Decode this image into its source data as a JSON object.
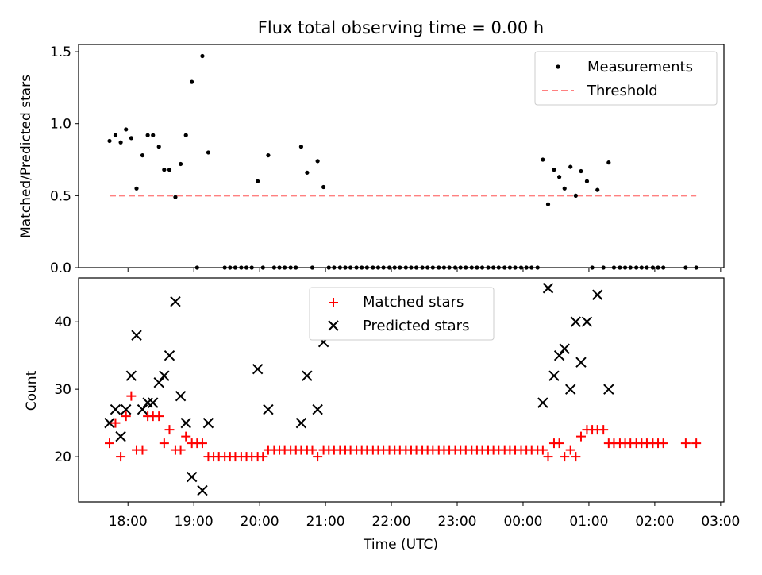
{
  "chart_data": [
    {
      "type": "scatter",
      "title": "Flux total observing time = 0.00 h",
      "xlabel": "",
      "ylabel": "Matched/Predicted stars",
      "xlim": [
        17.25,
        27.05
      ],
      "ylim": [
        0,
        1.55
      ],
      "yticks": [
        0.0,
        0.5,
        1.0,
        1.5
      ],
      "ytick_labels": [
        "0.0",
        "0.5",
        "1.0",
        "1.5"
      ],
      "legend_position": "upper right",
      "series": [
        {
          "name": "Measurements",
          "color": "#000000",
          "marker": "dot",
          "x": [
            17.72,
            17.81,
            17.89,
            17.97,
            18.05,
            18.13,
            18.22,
            18.3,
            18.38,
            18.47,
            18.55,
            18.63,
            18.72,
            18.8,
            18.88,
            18.97,
            19.05,
            19.13,
            19.22,
            19.47,
            19.55,
            19.63,
            19.72,
            19.8,
            19.88,
            19.97,
            20.05,
            20.13,
            20.22,
            20.3,
            20.38,
            20.47,
            20.55,
            20.63,
            20.72,
            20.8,
            20.88,
            20.97,
            21.05,
            21.13,
            21.22,
            21.3,
            21.38,
            21.47,
            21.55,
            21.63,
            21.72,
            21.8,
            21.88,
            21.97,
            22.05,
            22.13,
            22.22,
            22.3,
            22.38,
            22.47,
            22.55,
            22.63,
            22.72,
            22.8,
            22.88,
            22.97,
            23.05,
            23.13,
            23.22,
            23.3,
            23.38,
            23.47,
            23.55,
            23.63,
            23.72,
            23.8,
            23.88,
            23.97,
            24.05,
            24.13,
            24.22,
            24.3,
            24.38,
            24.47,
            24.55,
            24.63,
            24.72,
            24.8,
            24.88,
            24.97,
            25.05,
            25.13,
            25.22,
            25.3,
            25.38,
            25.47,
            25.55,
            25.63,
            25.72,
            25.8,
            25.88,
            25.97,
            26.05,
            26.13,
            26.47,
            26.63
          ],
          "y": [
            0.88,
            0.92,
            0.87,
            0.96,
            0.9,
            0.55,
            0.78,
            0.92,
            0.92,
            0.84,
            0.68,
            0.68,
            0.49,
            0.72,
            0.92,
            1.29,
            0.0,
            1.47,
            0.8,
            0.0,
            0.0,
            0.0,
            0.0,
            0.0,
            0.0,
            0.6,
            0.0,
            0.78,
            0.0,
            0.0,
            0.0,
            0.0,
            0.0,
            0.84,
            0.66,
            0.0,
            0.74,
            0.56,
            0.0,
            0.0,
            0.0,
            0.0,
            0.0,
            0.0,
            0.0,
            0.0,
            0.0,
            0.0,
            0.0,
            0.0,
            0.0,
            0.0,
            0.0,
            0.0,
            0.0,
            0.0,
            0.0,
            0.0,
            0.0,
            0.0,
            0.0,
            0.0,
            0.0,
            0.0,
            0.0,
            0.0,
            0.0,
            0.0,
            0.0,
            0.0,
            0.0,
            0.0,
            0.0,
            0.0,
            0.0,
            0.0,
            0.0,
            0.75,
            0.44,
            0.68,
            0.63,
            0.55,
            0.7,
            0.5,
            0.67,
            0.6,
            0.0,
            0.54,
            0.0,
            0.73,
            0.0,
            0.0,
            0.0,
            0.0,
            0.0,
            0.0,
            0.0,
            0.0,
            0.0,
            0.0,
            0.0,
            0.0
          ]
        },
        {
          "name": "Threshold",
          "color": "#ff8080",
          "style": "dashed",
          "x": [
            17.72,
            26.63
          ],
          "y": [
            0.5,
            0.5
          ]
        }
      ]
    },
    {
      "type": "scatter",
      "title": "",
      "xlabel": "Time (UTC)",
      "ylabel": "Count",
      "xlim": [
        17.25,
        27.05
      ],
      "ylim": [
        13.3,
        46.5
      ],
      "xticks": [
        18,
        19,
        20,
        21,
        22,
        23,
        24,
        25,
        26,
        27
      ],
      "xtick_labels": [
        "18:00",
        "19:00",
        "20:00",
        "21:00",
        "22:00",
        "23:00",
        "00:00",
        "01:00",
        "02:00",
        "03:00"
      ],
      "yticks": [
        20,
        30,
        40
      ],
      "ytick_labels": [
        "20",
        "30",
        "40"
      ],
      "legend_position": "upper center",
      "series": [
        {
          "name": "Matched stars",
          "color": "#ff0000",
          "marker": "plus",
          "x": [
            17.72,
            17.81,
            17.89,
            17.97,
            18.05,
            18.13,
            18.22,
            18.3,
            18.38,
            18.47,
            18.55,
            18.63,
            18.72,
            18.8,
            18.88,
            18.97,
            19.05,
            19.13,
            19.22,
            19.3,
            19.38,
            19.47,
            19.55,
            19.63,
            19.72,
            19.8,
            19.88,
            19.97,
            20.05,
            20.13,
            20.22,
            20.3,
            20.38,
            20.47,
            20.55,
            20.63,
            20.72,
            20.8,
            20.88,
            20.97,
            21.05,
            21.13,
            21.22,
            21.3,
            21.38,
            21.47,
            21.55,
            21.63,
            21.72,
            21.8,
            21.88,
            21.97,
            22.05,
            22.13,
            22.22,
            22.3,
            22.38,
            22.47,
            22.55,
            22.63,
            22.72,
            22.8,
            22.88,
            22.97,
            23.05,
            23.13,
            23.22,
            23.3,
            23.38,
            23.47,
            23.55,
            23.63,
            23.72,
            23.8,
            23.88,
            23.97,
            24.05,
            24.13,
            24.22,
            24.3,
            24.38,
            24.47,
            24.55,
            24.63,
            24.72,
            24.8,
            24.88,
            24.97,
            25.05,
            25.13,
            25.22,
            25.3,
            25.38,
            25.47,
            25.55,
            25.63,
            25.72,
            25.8,
            25.88,
            25.97,
            26.05,
            26.13,
            26.47,
            26.63
          ],
          "y": [
            22,
            25,
            20,
            26,
            29,
            21,
            21,
            26,
            26,
            26,
            22,
            24,
            21,
            21,
            23,
            22,
            22,
            22,
            20,
            20,
            20,
            20,
            20,
            20,
            20,
            20,
            20,
            20,
            20,
            21,
            21,
            21,
            21,
            21,
            21,
            21,
            21,
            21,
            20,
            21,
            21,
            21,
            21,
            21,
            21,
            21,
            21,
            21,
            21,
            21,
            21,
            21,
            21,
            21,
            21,
            21,
            21,
            21,
            21,
            21,
            21,
            21,
            21,
            21,
            21,
            21,
            21,
            21,
            21,
            21,
            21,
            21,
            21,
            21,
            21,
            21,
            21,
            21,
            21,
            21,
            20,
            22,
            22,
            20,
            21,
            20,
            23,
            24,
            24,
            24,
            24,
            22,
            22,
            22,
            22,
            22,
            22,
            22,
            22,
            22,
            22,
            22,
            22,
            22
          ]
        },
        {
          "name": "Predicted stars",
          "color": "#000000",
          "marker": "x",
          "x": [
            17.72,
            17.81,
            17.89,
            17.97,
            18.05,
            18.13,
            18.22,
            18.3,
            18.38,
            18.47,
            18.55,
            18.63,
            18.72,
            18.8,
            18.88,
            18.97,
            19.13,
            19.22,
            19.97,
            20.13,
            20.63,
            20.72,
            20.88,
            20.97,
            24.3,
            24.38,
            24.47,
            24.55,
            24.63,
            24.72,
            24.8,
            24.88,
            24.97,
            25.13,
            25.3
          ],
          "y": [
            25,
            27,
            23,
            27,
            32,
            38,
            27,
            28,
            28,
            31,
            32,
            35,
            43,
            29,
            25,
            17,
            15,
            25,
            33,
            27,
            25,
            32,
            27,
            37,
            28,
            45,
            32,
            35,
            36,
            30,
            40,
            34,
            40,
            44,
            30
          ]
        }
      ]
    }
  ]
}
